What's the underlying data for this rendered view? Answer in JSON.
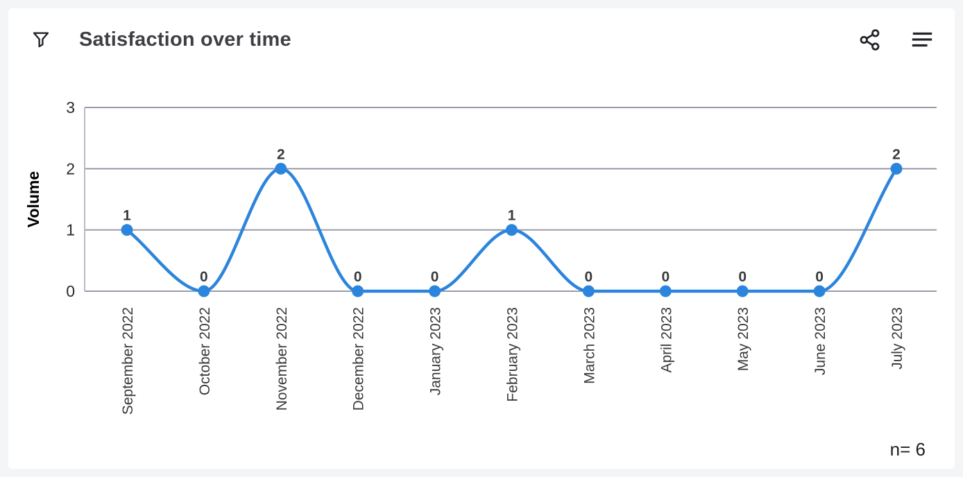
{
  "header": {
    "title": "Satisfaction over time"
  },
  "icons": {
    "filter": "funnel-icon",
    "share": "share-icon",
    "menu": "hamburger-menu-icon"
  },
  "footer": {
    "sample_count": "n= 6"
  },
  "colors": {
    "line": "#2c85dc",
    "point": "#2c85dc",
    "grid": "#9a9ba9",
    "axis": "#b9bac7",
    "tick_text": "#2b2b2e",
    "value_text": "#3a3b3f",
    "xlabel_text": "#3a3a3e",
    "title_text": "#3e3f44",
    "icon": "#222327",
    "card_bg": "#ffffff",
    "page_bg": "#f4f5f7"
  },
  "chart_data": {
    "type": "line",
    "curve": "monotone",
    "title": "Satisfaction over time",
    "categories": [
      "September 2022",
      "October 2022",
      "November 2022",
      "December 2022",
      "January 2023",
      "February 2023",
      "March 2023",
      "April 2023",
      "May 2023",
      "June 2023",
      "July 2023"
    ],
    "series": [
      {
        "name": "Volume",
        "values": [
          1,
          0,
          2,
          0,
          0,
          1,
          0,
          0,
          0,
          0,
          2
        ]
      }
    ],
    "xlabel": "",
    "ylabel": "Volume",
    "ylim": [
      0,
      3
    ],
    "yticks": [
      0,
      1,
      2,
      3
    ],
    "grid": true,
    "legend": false,
    "point_labels": true,
    "annotation": "n= 6"
  }
}
